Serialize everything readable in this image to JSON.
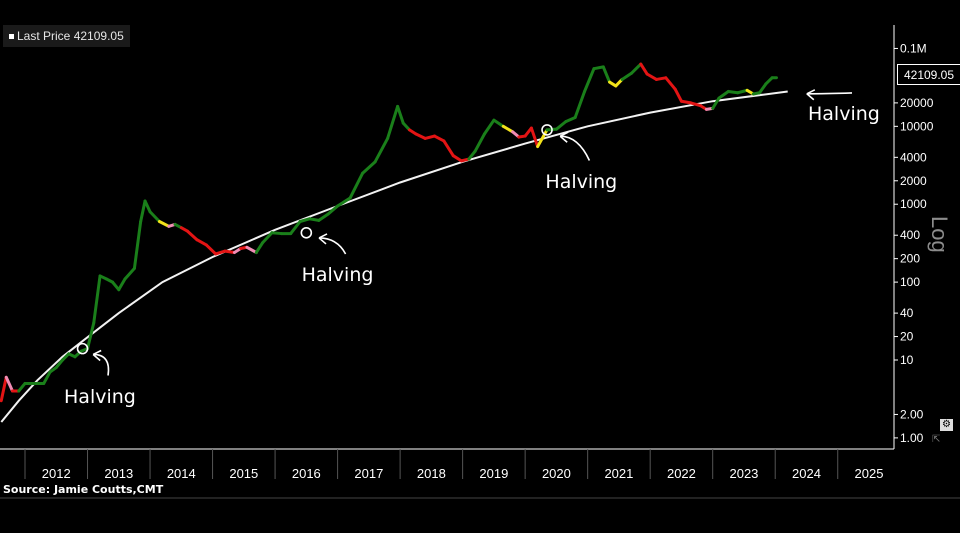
{
  "chart_data": {
    "type": "line",
    "yscale": "log",
    "ylabel": "Log",
    "legend": {
      "label": "Last Price",
      "value": "42109.05"
    },
    "last_price_tag": "42109.05",
    "source": "Source: Jamie Coutts,CMT",
    "x_ticks": [
      "2012",
      "2013",
      "2014",
      "2015",
      "2016",
      "2017",
      "2018",
      "2019",
      "2020",
      "2021",
      "2022",
      "2023",
      "2024",
      "2025"
    ],
    "y_ticks": [
      "0.1M",
      "20000",
      "10000",
      "4000",
      "2000",
      "1000",
      "400",
      "200",
      "100",
      "40",
      "20",
      "10",
      "2.00",
      "1.00"
    ],
    "y_tick_values": [
      100000,
      20000,
      10000,
      4000,
      2000,
      1000,
      400,
      200,
      100,
      40,
      20,
      10,
      2,
      1
    ],
    "ylim": [
      0.72,
      200000
    ],
    "xlim": [
      2011.6,
      2025.9
    ],
    "series": [
      {
        "regime_colors": {
          "g": "#1a7f1a",
          "r": "#e31414",
          "y": "#f2e21a",
          "p": "#f08cb4"
        },
        "points": [
          [
            2011.62,
            3,
            "r"
          ],
          [
            2011.7,
            6,
            "r"
          ],
          [
            2011.8,
            4,
            "p"
          ],
          [
            2011.9,
            4,
            "r"
          ],
          [
            2012.0,
            5,
            "g"
          ],
          [
            2012.1,
            5,
            "g"
          ],
          [
            2012.2,
            5,
            "g"
          ],
          [
            2012.3,
            5,
            "g"
          ],
          [
            2012.4,
            7,
            "g"
          ],
          [
            2012.5,
            8,
            "g"
          ],
          [
            2012.6,
            10,
            "g"
          ],
          [
            2012.7,
            12,
            "g"
          ],
          [
            2012.8,
            11,
            "g"
          ],
          [
            2012.9,
            13,
            "g"
          ],
          [
            2013.0,
            14,
            "g"
          ],
          [
            2013.1,
            30,
            "g"
          ],
          [
            2013.2,
            120,
            "g"
          ],
          [
            2013.3,
            110,
            "g"
          ],
          [
            2013.4,
            100,
            "g"
          ],
          [
            2013.5,
            80,
            "g"
          ],
          [
            2013.6,
            110,
            "g"
          ],
          [
            2013.75,
            150,
            "g"
          ],
          [
            2013.85,
            600,
            "g"
          ],
          [
            2013.92,
            1100,
            "g"
          ],
          [
            2014.0,
            800,
            "g"
          ],
          [
            2014.15,
            600,
            "g"
          ],
          [
            2014.3,
            520,
            "y"
          ],
          [
            2014.4,
            550,
            "p"
          ],
          [
            2014.5,
            500,
            "g"
          ],
          [
            2014.6,
            450,
            "r"
          ],
          [
            2014.75,
            350,
            "r"
          ],
          [
            2014.9,
            300,
            "r"
          ],
          [
            2015.05,
            230,
            "r"
          ],
          [
            2015.2,
            250,
            "r"
          ],
          [
            2015.35,
            240,
            "r"
          ],
          [
            2015.45,
            270,
            "p"
          ],
          [
            2015.55,
            280,
            "r"
          ],
          [
            2015.7,
            240,
            "p"
          ],
          [
            2015.8,
            320,
            "g"
          ],
          [
            2015.95,
            430,
            "g"
          ],
          [
            2016.1,
            420,
            "g"
          ],
          [
            2016.25,
            420,
            "g"
          ],
          [
            2016.4,
            600,
            "g"
          ],
          [
            2016.55,
            650,
            "g"
          ],
          [
            2016.7,
            620,
            "g"
          ],
          [
            2016.85,
            750,
            "g"
          ],
          [
            2017.0,
            950,
            "g"
          ],
          [
            2017.2,
            1200,
            "g"
          ],
          [
            2017.4,
            2500,
            "g"
          ],
          [
            2017.6,
            3500,
            "g"
          ],
          [
            2017.8,
            7000,
            "g"
          ],
          [
            2017.96,
            18000,
            "g"
          ],
          [
            2018.05,
            11000,
            "g"
          ],
          [
            2018.15,
            9000,
            "g"
          ],
          [
            2018.25,
            8000,
            "r"
          ],
          [
            2018.4,
            7000,
            "r"
          ],
          [
            2018.55,
            7500,
            "r"
          ],
          [
            2018.7,
            6500,
            "r"
          ],
          [
            2018.85,
            4200,
            "r"
          ],
          [
            2018.98,
            3600,
            "r"
          ],
          [
            2019.1,
            3800,
            "r"
          ],
          [
            2019.2,
            4800,
            "g"
          ],
          [
            2019.35,
            8000,
            "g"
          ],
          [
            2019.5,
            12000,
            "g"
          ],
          [
            2019.65,
            10000,
            "g"
          ],
          [
            2019.8,
            8500,
            "y"
          ],
          [
            2019.9,
            7300,
            "p"
          ],
          [
            2020.0,
            7500,
            "r"
          ],
          [
            2020.1,
            9500,
            "r"
          ],
          [
            2020.2,
            5500,
            "r"
          ],
          [
            2020.35,
            9000,
            "y"
          ],
          [
            2020.5,
            9200,
            "g"
          ],
          [
            2020.65,
            11500,
            "g"
          ],
          [
            2020.8,
            13000,
            "g"
          ],
          [
            2020.95,
            28000,
            "g"
          ],
          [
            2021.1,
            55000,
            "g"
          ],
          [
            2021.25,
            58000,
            "g"
          ],
          [
            2021.35,
            37000,
            "g"
          ],
          [
            2021.45,
            33000,
            "y"
          ],
          [
            2021.55,
            40000,
            "y"
          ],
          [
            2021.7,
            48000,
            "g"
          ],
          [
            2021.85,
            63000,
            "g"
          ],
          [
            2021.95,
            47000,
            "r"
          ],
          [
            2022.1,
            40000,
            "r"
          ],
          [
            2022.25,
            42000,
            "r"
          ],
          [
            2022.4,
            30000,
            "r"
          ],
          [
            2022.5,
            21000,
            "r"
          ],
          [
            2022.65,
            20000,
            "r"
          ],
          [
            2022.8,
            18500,
            "r"
          ],
          [
            2022.9,
            16500,
            "r"
          ],
          [
            2023.0,
            17000,
            "p"
          ],
          [
            2023.1,
            23000,
            "g"
          ],
          [
            2023.25,
            28000,
            "g"
          ],
          [
            2023.4,
            27000,
            "g"
          ],
          [
            2023.55,
            29000,
            "g"
          ],
          [
            2023.65,
            26000,
            "y"
          ],
          [
            2023.75,
            27000,
            "g"
          ],
          [
            2023.85,
            35000,
            "g"
          ],
          [
            2023.95,
            42000,
            "g"
          ],
          [
            2024.02,
            42109.05,
            "g"
          ]
        ]
      },
      {
        "trend": [
          [
            2011.62,
            1.6
          ],
          [
            2011.9,
            3
          ],
          [
            2012.2,
            5.5
          ],
          [
            2012.6,
            11
          ],
          [
            2012.9,
            17
          ],
          [
            2013.5,
            40
          ],
          [
            2014.2,
            100
          ],
          [
            2015.0,
            210
          ],
          [
            2016.0,
            470
          ],
          [
            2017.0,
            950
          ],
          [
            2018.0,
            1900
          ],
          [
            2019.0,
            3500
          ],
          [
            2020.0,
            6000
          ],
          [
            2021.0,
            10000
          ],
          [
            2022.0,
            15000
          ],
          [
            2023.0,
            21000
          ],
          [
            2024.2,
            28000
          ]
        ]
      }
    ],
    "annotations": [
      {
        "text": "Halving",
        "x": 2012.92,
        "y": 14,
        "label_x": 2013.2,
        "label_y": 3.3
      },
      {
        "text": "Halving",
        "x": 2016.5,
        "y": 430,
        "label_x": 2017.0,
        "label_y": 120
      },
      {
        "text": "Halving",
        "x": 2020.35,
        "y": 9000,
        "label_x": 2020.9,
        "label_y": 1900
      },
      {
        "text": "Halving",
        "x": 2024.25,
        "y": 28500,
        "label_x": 2025.1,
        "label_y": 14000
      }
    ]
  }
}
